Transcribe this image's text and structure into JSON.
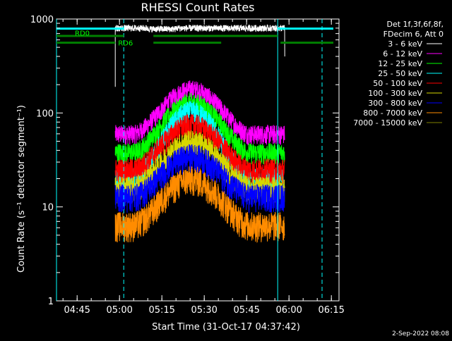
{
  "chart_data": {
    "type": "line",
    "title": "RHESSI Count Rates",
    "xlabel": "Start Time (31-Oct-17 04:37:42)",
    "ylabel": "Count Rate (s⁻¹ detector segment⁻¹)",
    "xlim_minutes_since_0437_42": [
      0,
      100
    ],
    "xlim": [
      "04:37:42",
      "06:17:42"
    ],
    "ylim": [
      1,
      1000
    ],
    "yscale": "log",
    "x_tick_labels": [
      "04:45",
      "05:00",
      "05:15",
      "05:30",
      "05:45",
      "06:00",
      "06:15"
    ],
    "y_tick_labels": [
      "1",
      "10",
      "100",
      "1000"
    ],
    "legend_placement": "top-right",
    "legend_header": [
      "Det 1f,3f,6f,8f,",
      "FDecim 6, Att 0"
    ],
    "attenuator_labels": [
      "RD0",
      "RD6"
    ],
    "footer_date": "2-Sep-2022 08:08",
    "background_color": "#000000",
    "series": [
      {
        "name": "3 - 6 keV",
        "color": "#ffffff",
        "peak": 800,
        "data_start": "04:58:30",
        "data_end": "05:58:30"
      },
      {
        "name": "6 - 12 keV",
        "color": "#ff00ff",
        "baseline": 60,
        "peak": 180
      },
      {
        "name": "12 - 25 keV",
        "color": "#00ff00",
        "baseline": 38,
        "peak": 130
      },
      {
        "name": "25 - 50 keV",
        "color": "#00ffff",
        "baseline": 20,
        "peak": 105
      },
      {
        "name": "50 - 100 keV",
        "color": "#ff0000",
        "baseline": 25,
        "peak": 75
      },
      {
        "name": "100 - 300 keV",
        "color": "#d7d700",
        "baseline": 16,
        "peak": 50
      },
      {
        "name": "300 - 800 keV",
        "color": "#0000ff",
        "baseline": 13,
        "peak": 35
      },
      {
        "name": "800 - 7000 keV",
        "color": "#ff8c00",
        "baseline": 6.5,
        "peak": 20
      },
      {
        "name": "7000 - 15000 keV",
        "color": "#808000"
      }
    ],
    "data_window": [
      "04:58:30",
      "05:58:30"
    ],
    "peak_time": "05:25:30",
    "flare_rise_start": "05:05:00",
    "flare_decay_end": "05:46:00",
    "vertical_markers": [
      {
        "time": "04:37:42",
        "style": "solid",
        "color": "#00ffff"
      },
      {
        "time": "05:01:30",
        "style": "dashed",
        "color": "#00ffff"
      },
      {
        "time": "05:56:00",
        "style": "solid",
        "color": "#00ffff"
      },
      {
        "time": "06:11:42",
        "style": "dashed",
        "color": "#00ffff"
      }
    ],
    "cyan_band_segments": [
      [
        "04:37:42",
        "05:01:30"
      ],
      [
        "05:56:00",
        "06:15:42"
      ]
    ],
    "attenuator_bars": [
      {
        "label": "RD0",
        "segments": [
          [
            "04:37:42",
            "05:01:30"
          ],
          [
            "05:12:00",
            "05:56:00"
          ]
        ],
        "y_level": 660
      },
      {
        "label": "RD6",
        "segments": [
          [
            "04:37:42",
            "04:58:30"
          ],
          [
            "05:12:00",
            "05:36:00"
          ],
          [
            "05:57:00",
            "06:15:42"
          ]
        ],
        "y_level": 560
      }
    ]
  }
}
